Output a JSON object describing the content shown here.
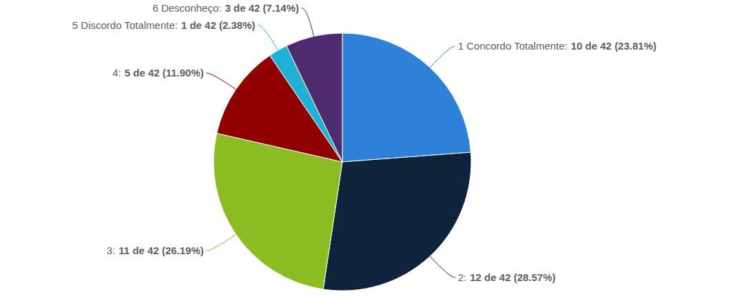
{
  "chart_data": {
    "type": "pie",
    "categories": [
      "1 Concordo Totalmente:",
      "2:",
      "3:",
      "4:",
      "5 Discordo Totalmente:",
      "6 Desconheço:"
    ],
    "values": [
      10,
      12,
      11,
      5,
      1,
      3
    ],
    "value_labels": [
      "10 de 42 (23.81%)",
      "12 de 42 (28.57%)",
      "11 de 42 (26.19%)",
      "5 de 42 (11.90%)",
      "1 de 42 (2.38%)",
      "3 de 42 (7.14%)"
    ],
    "colors": [
      "#2f80d9",
      "#0f233c",
      "#8bbc22",
      "#910000",
      "#1fb0d6",
      "#4d2b6e"
    ],
    "data_labels": true
  }
}
